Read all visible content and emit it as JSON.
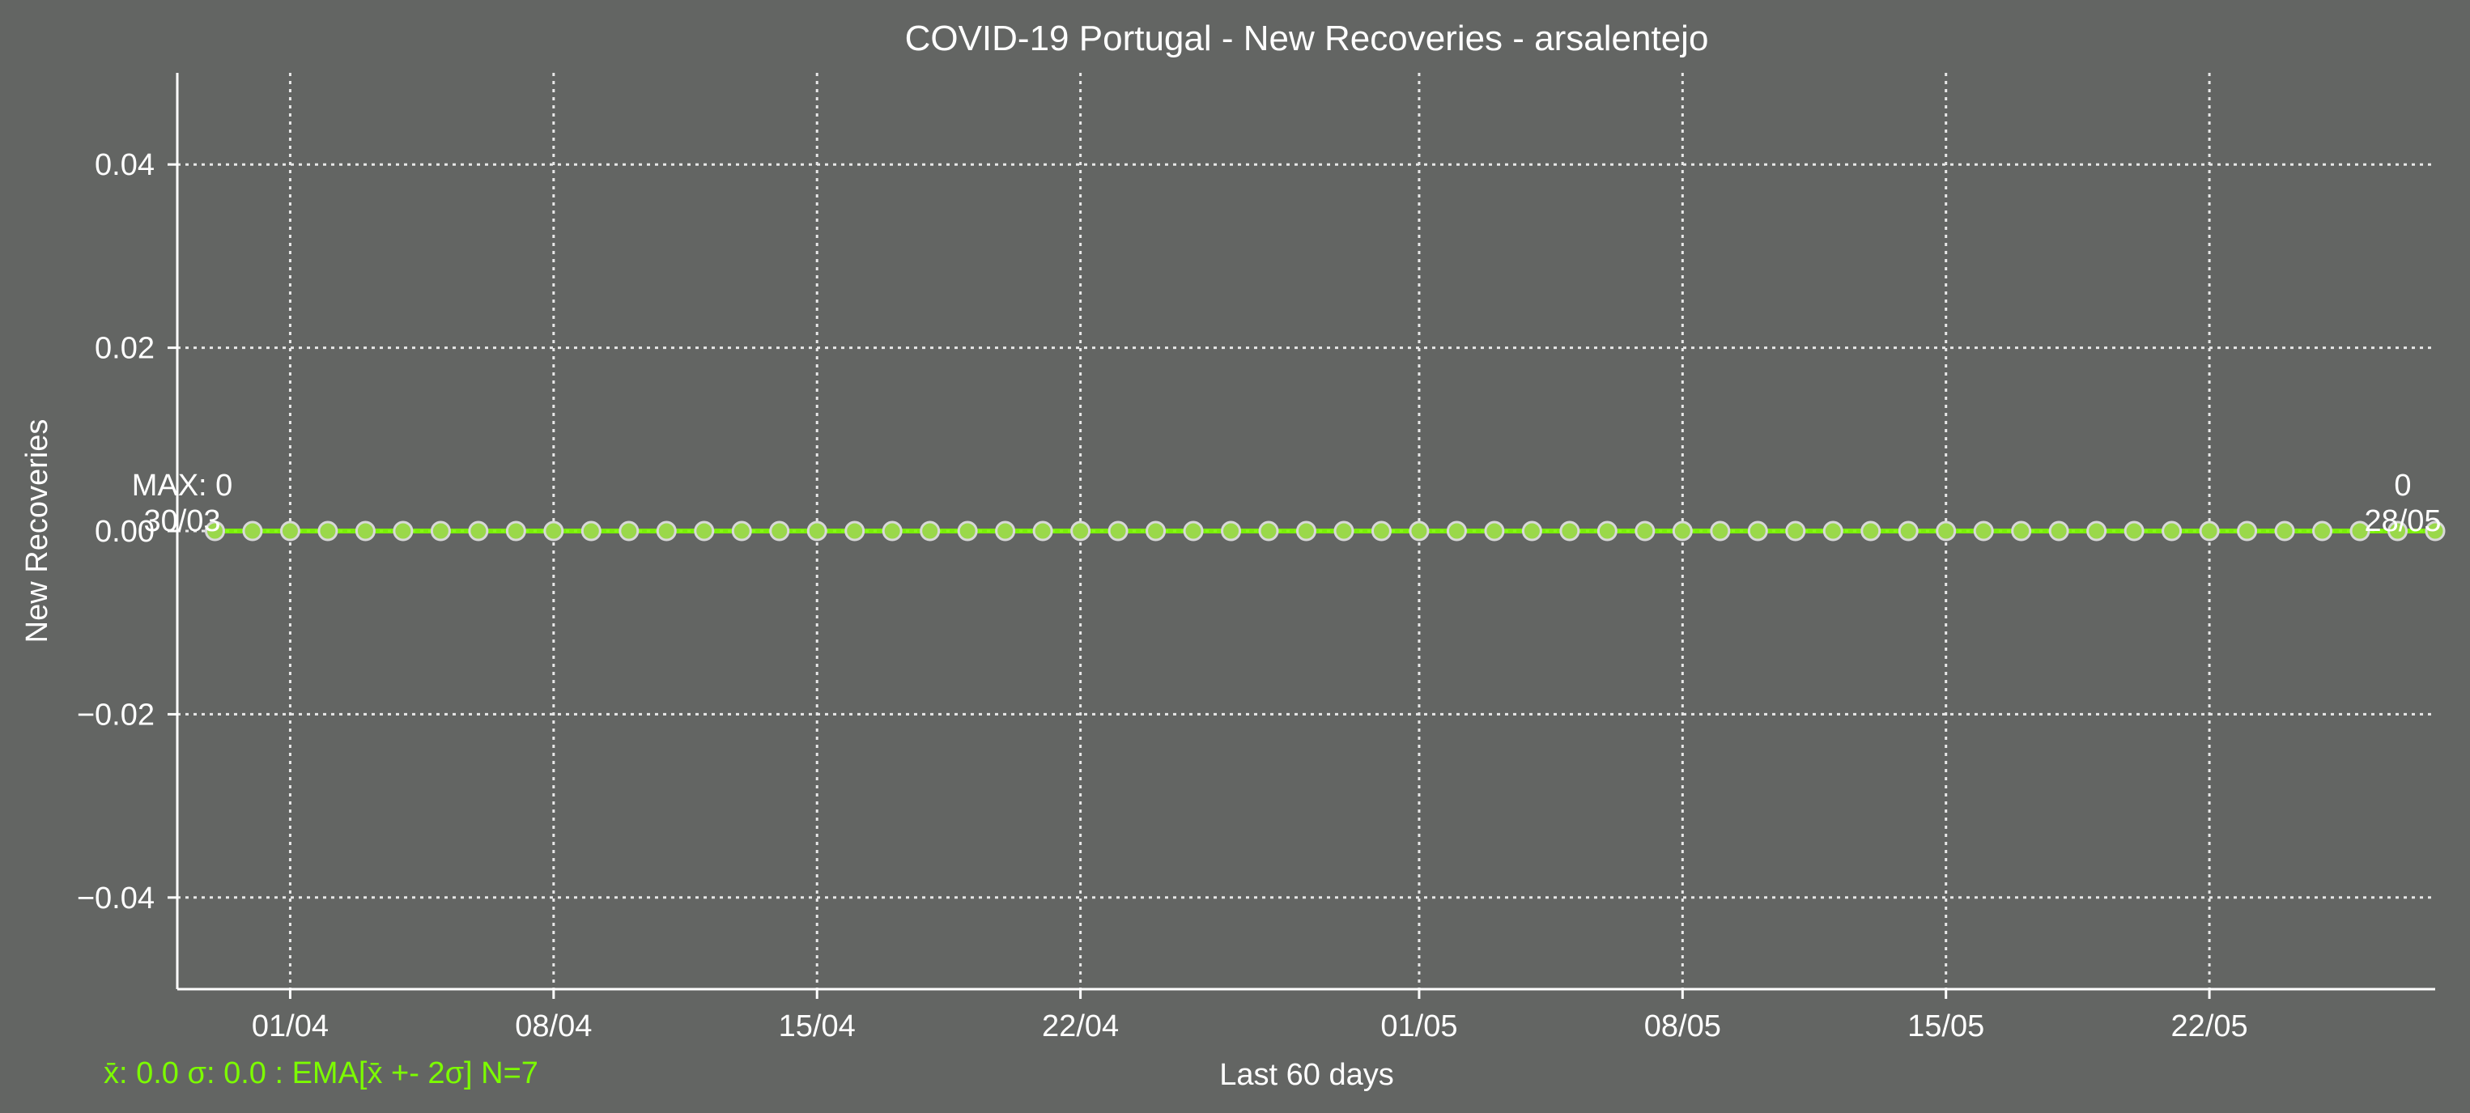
{
  "colors": {
    "background": "#636563",
    "series": "#7cfc00",
    "marker_fill": "#9ad84a",
    "marker_edge": "#d8d8d8",
    "text": "#ffffff",
    "grid": "#e8e8e8"
  },
  "chart_data": {
    "type": "line",
    "title": "COVID-19 Portugal - New Recoveries - arsalentejo",
    "xlabel": "Last 60 days",
    "ylabel": "New Recoveries",
    "ylim": [
      -0.05,
      0.05
    ],
    "yticks": [
      0.04,
      0.02,
      0.0,
      -0.02,
      -0.04
    ],
    "ytick_labels": [
      "0.04",
      "0.02",
      "0.00",
      "−0.02",
      "−0.04"
    ],
    "x_start": "2020-03-30",
    "x_end": "2020-05-28",
    "xlim": [
      "2020-03-29",
      "2020-05-28"
    ],
    "xtick_labels": [
      {
        "date": "2020-04-01",
        "label": "01/04"
      },
      {
        "date": "2020-04-08",
        "label": "08/04"
      },
      {
        "date": "2020-04-15",
        "label": "15/04"
      },
      {
        "date": "2020-04-22",
        "label": "22/04"
      },
      {
        "date": "2020-05-01",
        "label": "01/05"
      },
      {
        "date": "2020-05-08",
        "label": "08/05"
      },
      {
        "date": "2020-05-15",
        "label": "15/05"
      },
      {
        "date": "2020-05-22",
        "label": "22/05"
      }
    ],
    "grid": true,
    "series": [
      {
        "values": [
          0,
          0,
          0,
          0,
          0,
          0,
          0,
          0,
          0,
          0,
          0,
          0,
          0,
          0,
          0,
          0,
          0,
          0,
          0,
          0,
          0,
          0,
          0,
          0,
          0,
          0,
          0,
          0,
          0,
          0,
          0,
          0,
          0,
          0,
          0,
          0,
          0,
          0,
          0,
          0,
          0,
          0,
          0,
          0,
          0,
          0,
          0,
          0,
          0,
          0,
          0,
          0,
          0,
          0,
          0,
          0,
          0,
          0,
          0,
          0
        ]
      }
    ],
    "annotations": {
      "max_label": "MAX: 0",
      "max_date": "30/03",
      "last_value": "0",
      "last_date": "28/05"
    },
    "stats_text": "x̄: 0.0 σ: 0.0 : EMA[x̄ +- 2σ] N=7"
  }
}
